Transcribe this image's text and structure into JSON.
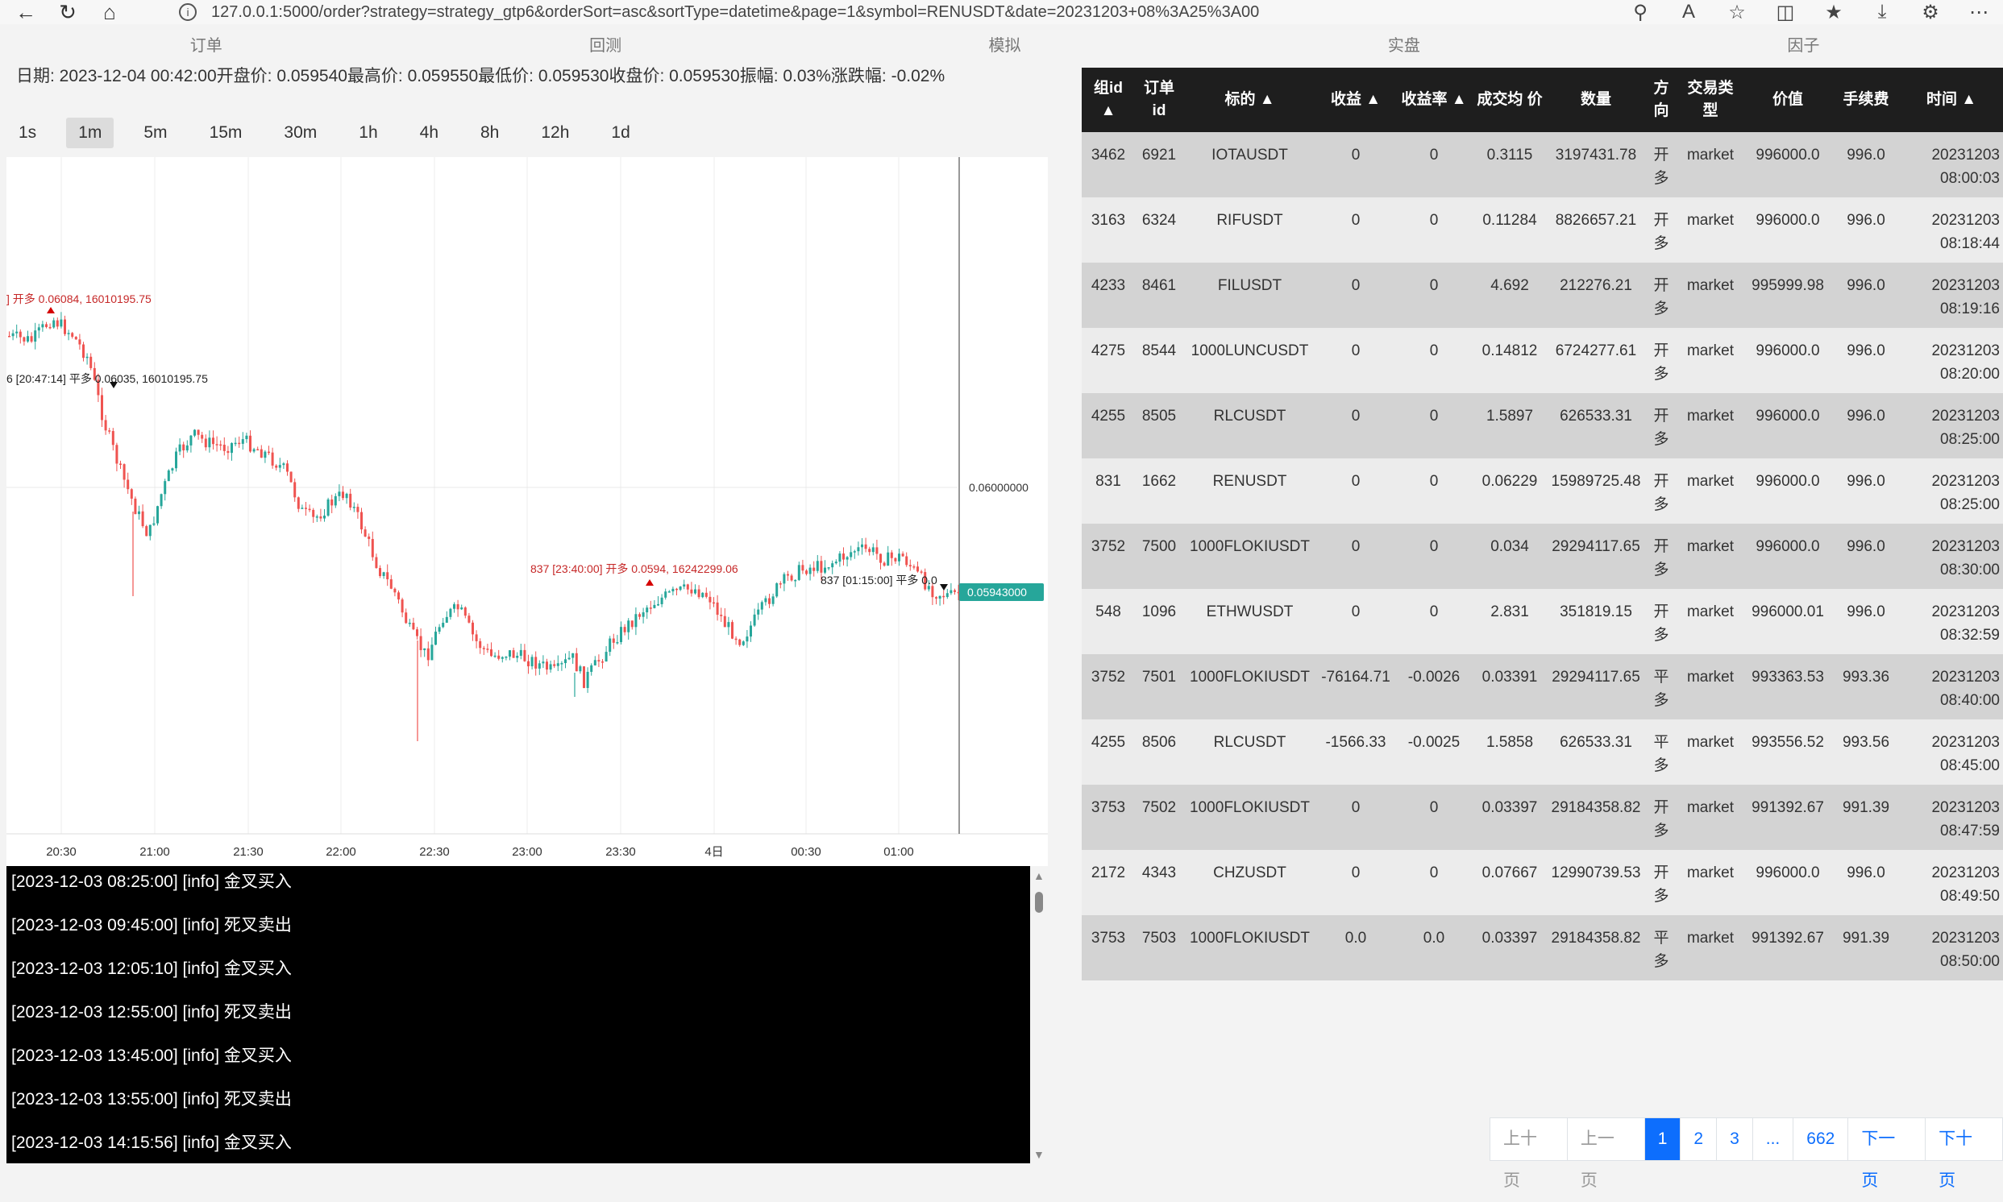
{
  "browser": {
    "url": "127.0.0.1:5000/order?strategy=strategy_gtp6&orderSort=asc&sortType=datetime&page=1&symbol=RENUSDT&date=20231203+08%3A25%3A00"
  },
  "tabs": [
    {
      "label": "订单",
      "active": true
    },
    {
      "label": "回测",
      "active": false
    },
    {
      "label": "模拟",
      "active": false
    },
    {
      "label": "实盘",
      "active": false
    },
    {
      "label": "因子",
      "active": false
    }
  ],
  "info_line": "日期: 2023-12-04 00:42:00开盘价: 0.059540最高价: 0.059550最低价: 0.059530收盘价: 0.059530振幅: 0.03%涨跌幅: -0.02%",
  "intervals": [
    "1s",
    "1m",
    "5m",
    "15m",
    "30m",
    "1h",
    "4h",
    "8h",
    "12h",
    "1d"
  ],
  "active_interval": "1m",
  "chart_data": {
    "type": "candlestick",
    "x_ticks": [
      "20:30",
      "21:00",
      "21:30",
      "22:00",
      "22:30",
      "23:00",
      "23:30",
      "4日",
      "00:30",
      "01:00"
    ],
    "price_label": "0.06000000",
    "last_price_label": "0.05943000",
    "up_color": "#26a69a",
    "down_color": "#ef5350",
    "markers": [
      {
        "text": "] 开多 0.06084, 16010195.75",
        "color": "#c62828",
        "direction": "up"
      },
      {
        "text": "6 [20:47:14] 平多 0.06035, 16010195.75",
        "color": "#222222",
        "direction": "down"
      },
      {
        "text": "837 [23:40:00] 开多 0.0594, 16242299.06",
        "color": "#c62828",
        "direction": "up"
      },
      {
        "text": "837 [01:15:00] 平多 0.0",
        "color": "#222222",
        "direction": "down"
      }
    ]
  },
  "log_lines": [
    "[2023-12-03 08:25:00] [info] 金叉买入",
    "[2023-12-03 09:45:00] [info] 死叉卖出",
    "[2023-12-03 12:05:10] [info] 金叉买入",
    "[2023-12-03 12:55:00] [info] 死叉卖出",
    "[2023-12-03 13:45:00] [info] 金叉买入",
    "[2023-12-03 13:55:00] [info] 死叉卖出",
    "[2023-12-03 14:15:56] [info] 金叉买入"
  ],
  "table": {
    "headers": [
      "组id ▲",
      "订单 id",
      "标的 ▲",
      "收益 ▲",
      "收益率 ▲",
      "成交均 价",
      "数量",
      "方 向",
      "交易类 型",
      "价值",
      "手续费",
      "时间 ▲"
    ],
    "rows": [
      [
        "3462",
        "6921",
        "IOTAUSDT",
        "0",
        "0",
        "0.3115",
        "3197431.78",
        "开 多",
        "market",
        "996000.0",
        "996.0",
        "20231203 08:00:03"
      ],
      [
        "3163",
        "6324",
        "RIFUSDT",
        "0",
        "0",
        "0.11284",
        "8826657.21",
        "开 多",
        "market",
        "996000.0",
        "996.0",
        "20231203 08:18:44"
      ],
      [
        "4233",
        "8461",
        "FILUSDT",
        "0",
        "0",
        "4.692",
        "212276.21",
        "开 多",
        "market",
        "995999.98",
        "996.0",
        "20231203 08:19:16"
      ],
      [
        "4275",
        "8544",
        "1000LUNCUSDT",
        "0",
        "0",
        "0.14812",
        "6724277.61",
        "开 多",
        "market",
        "996000.0",
        "996.0",
        "20231203 08:20:00"
      ],
      [
        "4255",
        "8505",
        "RLCUSDT",
        "0",
        "0",
        "1.5897",
        "626533.31",
        "开 多",
        "market",
        "996000.0",
        "996.0",
        "20231203 08:25:00"
      ],
      [
        "831",
        "1662",
        "RENUSDT",
        "0",
        "0",
        "0.06229",
        "15989725.48",
        "开 多",
        "market",
        "996000.0",
        "996.0",
        "20231203 08:25:00"
      ],
      [
        "3752",
        "7500",
        "1000FLOKIUSDT",
        "0",
        "0",
        "0.034",
        "29294117.65",
        "开 多",
        "market",
        "996000.0",
        "996.0",
        "20231203 08:30:00"
      ],
      [
        "548",
        "1096",
        "ETHWUSDT",
        "0",
        "0",
        "2.831",
        "351819.15",
        "开 多",
        "market",
        "996000.01",
        "996.0",
        "20231203 08:32:59"
      ],
      [
        "3752",
        "7501",
        "1000FLOKIUSDT",
        "-76164.71",
        "-0.0026",
        "0.03391",
        "29294117.65",
        "平 多",
        "market",
        "993363.53",
        "993.36",
        "20231203 08:40:00"
      ],
      [
        "4255",
        "8506",
        "RLCUSDT",
        "-1566.33",
        "-0.0025",
        "1.5858",
        "626533.31",
        "平 多",
        "market",
        "993556.52",
        "993.56",
        "20231203 08:45:00"
      ],
      [
        "3753",
        "7502",
        "1000FLOKIUSDT",
        "0",
        "0",
        "0.03397",
        "29184358.82",
        "开 多",
        "market",
        "991392.67",
        "991.39",
        "20231203 08:47:59"
      ],
      [
        "2172",
        "4343",
        "CHZUSDT",
        "0",
        "0",
        "0.07667",
        "12990739.53",
        "开 多",
        "market",
        "996000.0",
        "996.0",
        "20231203 08:49:50"
      ],
      [
        "3753",
        "7503",
        "1000FLOKIUSDT",
        "0.0",
        "0.0",
        "0.03397",
        "29184358.82",
        "平 多",
        "market",
        "991392.67",
        "991.39",
        "20231203 08:50:00"
      ]
    ]
  },
  "pagination": {
    "prev10": "上十页",
    "prev": "上一页",
    "pages": [
      "1",
      "2",
      "3",
      "...",
      "662"
    ],
    "current": "1",
    "next": "下一页",
    "next10": "下十页"
  }
}
